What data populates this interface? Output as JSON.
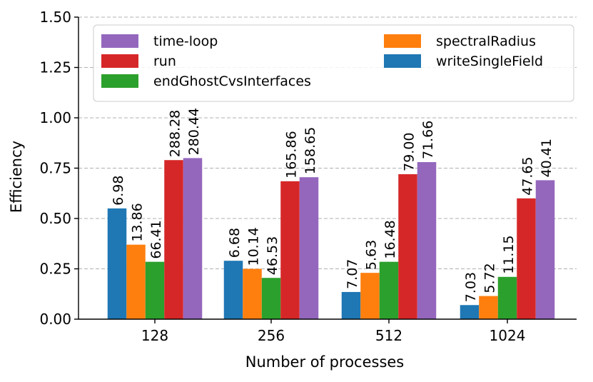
{
  "chart_data": {
    "type": "bar",
    "xlabel": "Number of processes",
    "ylabel": "Efficiency",
    "ylim": [
      0,
      1.5
    ],
    "yticks": [
      "0.00",
      "0.25",
      "0.50",
      "0.75",
      "1.00",
      "1.25",
      "1.50"
    ],
    "grid": true,
    "legend_position": "top",
    "categories": [
      "128",
      "256",
      "512",
      "1024"
    ],
    "series": [
      {
        "name": "writeSingleField",
        "color": "#1f77b4",
        "values": [
          0.55,
          0.29,
          0.135,
          0.07
        ],
        "labels": [
          "6.98",
          "6.68",
          "7.07",
          "7.03"
        ]
      },
      {
        "name": "spectralRadius",
        "color": "#ff7f0e",
        "values": [
          0.37,
          0.25,
          0.23,
          0.115
        ],
        "labels": [
          "13.86",
          "10.14",
          "5.63",
          "5.72"
        ]
      },
      {
        "name": "endGhostCvsInterfaces",
        "color": "#2ca02c",
        "values": [
          0.285,
          0.205,
          0.285,
          0.21
        ],
        "labels": [
          "66.41",
          "46.53",
          "16.48",
          "11.15"
        ]
      },
      {
        "name": "run",
        "color": "#d62728",
        "values": [
          0.79,
          0.685,
          0.72,
          0.6
        ],
        "labels": [
          "288.28",
          "165.86",
          "79.00",
          "47.65"
        ]
      },
      {
        "name": "time-loop",
        "color": "#9467bd",
        "values": [
          0.8,
          0.705,
          0.78,
          0.69
        ],
        "labels": [
          "280.44",
          "158.65",
          "71.66",
          "40.41"
        ]
      }
    ]
  }
}
